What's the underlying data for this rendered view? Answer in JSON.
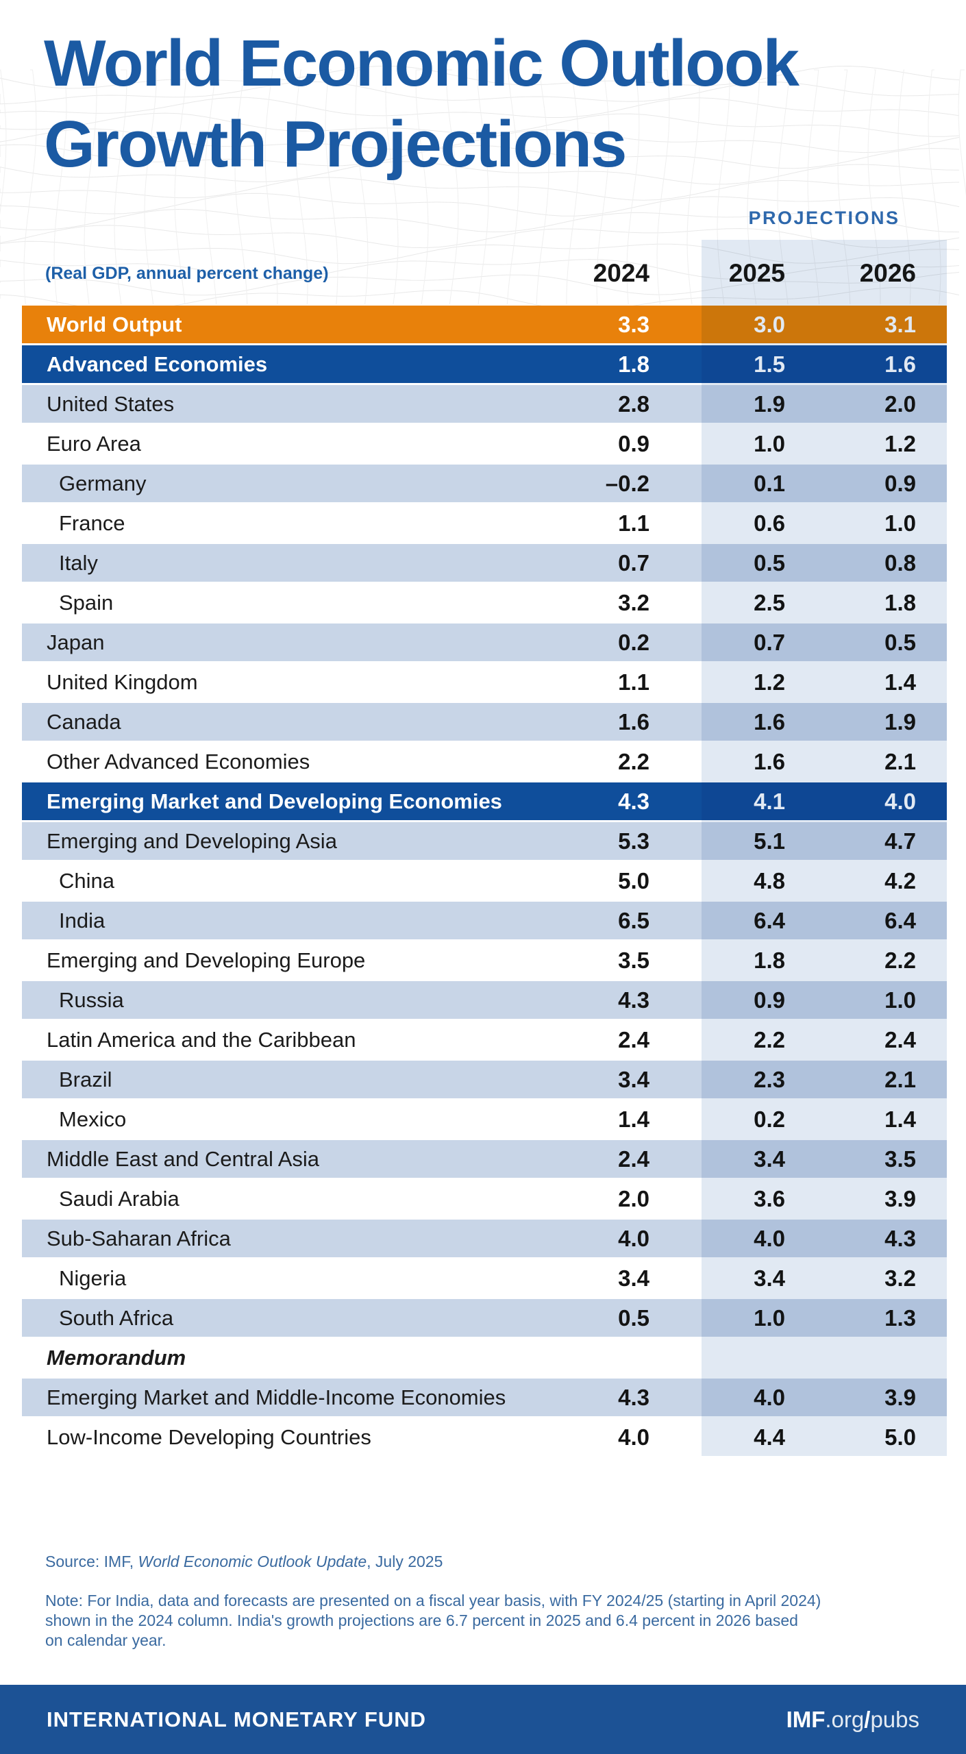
{
  "header": {
    "title_line1": "World Economic Outlook",
    "title_line2": "Growth Projections",
    "projections_label": "PROJECTIONS",
    "subtitle": "(Real GDP, annual percent change)",
    "columns": [
      "2024",
      "2025",
      "2026"
    ]
  },
  "chart_data": {
    "type": "table",
    "title": "World Economic Outlook Growth Projections",
    "unit": "Real GDP, annual percent change",
    "columns": [
      "2024",
      "2025",
      "2026"
    ],
    "rows": [
      {
        "label": "World Output",
        "values": [
          "3.3",
          "3.0",
          "3.1"
        ],
        "style": "orange"
      },
      {
        "label": "Advanced Economies",
        "values": [
          "1.8",
          "1.5",
          "1.6"
        ],
        "style": "dark"
      },
      {
        "label": "United States",
        "values": [
          "2.8",
          "1.9",
          "2.0"
        ],
        "style": "light"
      },
      {
        "label": "Euro Area",
        "values": [
          "0.9",
          "1.0",
          "1.2"
        ],
        "style": "white"
      },
      {
        "label": "Germany",
        "values": [
          "–0.2",
          "0.1",
          "0.9"
        ],
        "style": "light",
        "indent": true
      },
      {
        "label": "France",
        "values": [
          "1.1",
          "0.6",
          "1.0"
        ],
        "style": "white",
        "indent": true
      },
      {
        "label": "Italy",
        "values": [
          "0.7",
          "0.5",
          "0.8"
        ],
        "style": "light",
        "indent": true
      },
      {
        "label": "Spain",
        "values": [
          "3.2",
          "2.5",
          "1.8"
        ],
        "style": "white",
        "indent": true
      },
      {
        "label": "Japan",
        "values": [
          "0.2",
          "0.7",
          "0.5"
        ],
        "style": "light"
      },
      {
        "label": "United Kingdom",
        "values": [
          "1.1",
          "1.2",
          "1.4"
        ],
        "style": "white"
      },
      {
        "label": "Canada",
        "values": [
          "1.6",
          "1.6",
          "1.9"
        ],
        "style": "light"
      },
      {
        "label": "Other Advanced Economies",
        "values": [
          "2.2",
          "1.6",
          "2.1"
        ],
        "style": "white"
      },
      {
        "label": "Emerging Market and Developing Economies",
        "values": [
          "4.3",
          "4.1",
          "4.0"
        ],
        "style": "dark"
      },
      {
        "label": "Emerging and Developing Asia",
        "values": [
          "5.3",
          "5.1",
          "4.7"
        ],
        "style": "light"
      },
      {
        "label": "China",
        "values": [
          "5.0",
          "4.8",
          "4.2"
        ],
        "style": "white",
        "indent": true
      },
      {
        "label": "India",
        "values": [
          "6.5",
          "6.4",
          "6.4"
        ],
        "style": "light",
        "indent": true
      },
      {
        "label": "Emerging and Developing Europe",
        "values": [
          "3.5",
          "1.8",
          "2.2"
        ],
        "style": "white"
      },
      {
        "label": "Russia",
        "values": [
          "4.3",
          "0.9",
          "1.0"
        ],
        "style": "light",
        "indent": true
      },
      {
        "label": "Latin America and the Caribbean",
        "values": [
          "2.4",
          "2.2",
          "2.4"
        ],
        "style": "white"
      },
      {
        "label": "Brazil",
        "values": [
          "3.4",
          "2.3",
          "2.1"
        ],
        "style": "light",
        "indent": true
      },
      {
        "label": "Mexico",
        "values": [
          "1.4",
          "0.2",
          "1.4"
        ],
        "style": "white",
        "indent": true
      },
      {
        "label": "Middle East and Central Asia",
        "values": [
          "2.4",
          "3.4",
          "3.5"
        ],
        "style": "light"
      },
      {
        "label": "Saudi Arabia",
        "values": [
          "2.0",
          "3.6",
          "3.9"
        ],
        "style": "white",
        "indent": true
      },
      {
        "label": "Sub-Saharan Africa",
        "values": [
          "4.0",
          "4.0",
          "4.3"
        ],
        "style": "light"
      },
      {
        "label": "Nigeria",
        "values": [
          "3.4",
          "3.4",
          "3.2"
        ],
        "style": "white",
        "indent": true
      },
      {
        "label": "South Africa",
        "values": [
          "0.5",
          "1.0",
          "1.3"
        ],
        "style": "light",
        "indent": true
      },
      {
        "label": "Memorandum",
        "values": [
          "",
          "",
          ""
        ],
        "style": "white memo"
      },
      {
        "label": "Emerging Market and Middle-Income Economies",
        "values": [
          "4.3",
          "4.0",
          "3.9"
        ],
        "style": "light"
      },
      {
        "label": "Low-Income Developing Countries",
        "values": [
          "4.0",
          "4.4",
          "5.0"
        ],
        "style": "white"
      }
    ]
  },
  "source": {
    "prefix": "Source: IMF, ",
    "italic": "World Economic Outlook Update",
    "suffix": ", July 2025"
  },
  "note_lines": [
    "Note: For India, data and forecasts are presented on a fiscal year basis, with FY 2024/25 (starting in April 2024)",
    "shown in the 2024 column. India's growth projections are 6.7 percent in 2025 and 6.4 percent in 2026 based",
    "on calendar year."
  ],
  "footer": {
    "left": "INTERNATIONAL MONETARY FUND",
    "brand_bold": "IMF",
    "brand_mid": ".org",
    "brand_slash": "/",
    "brand_end": "pubs"
  },
  "colors": {
    "title_blue": "#1B5AA3",
    "world_output_orange": "#E8810B",
    "section_blue": "#0F4E9B",
    "light_row_blue": "#C8D5E7",
    "projections_tint": "rgba(27,84,164,0.13)",
    "footer_blue": "#1C5295",
    "note_text_blue": "#3A6AA0"
  }
}
